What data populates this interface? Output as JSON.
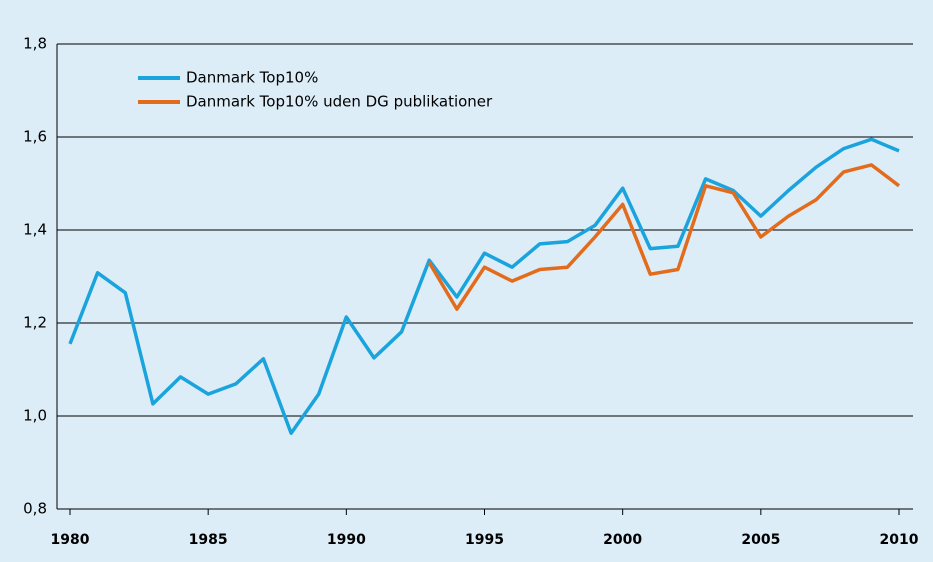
{
  "chart_data": {
    "type": "line",
    "x": [
      1980,
      1981,
      1982,
      1983,
      1984,
      1985,
      1986,
      1987,
      1988,
      1989,
      1990,
      1991,
      1992,
      1993,
      1994,
      1995,
      1996,
      1997,
      1998,
      1999,
      2000,
      2001,
      2002,
      2003,
      2004,
      2005,
      2006,
      2007,
      2008,
      2009,
      2010
    ],
    "series": [
      {
        "name": "Danmark Top10%",
        "color": "#1aa3dc",
        "values": [
          1.155,
          1.308,
          1.265,
          1.026,
          1.084,
          1.047,
          1.069,
          1.123,
          0.963,
          1.047,
          1.213,
          1.125,
          1.181,
          1.335,
          1.256,
          1.35,
          1.32,
          1.37,
          1.375,
          1.41,
          1.49,
          1.36,
          1.365,
          1.51,
          1.485,
          1.43,
          1.485,
          1.535,
          1.575,
          1.595,
          1.57
        ]
      },
      {
        "name": "Danmark Top10% uden DG publikationer",
        "color": "#e36c1c",
        "values": [
          null,
          null,
          null,
          null,
          null,
          null,
          null,
          null,
          null,
          null,
          null,
          null,
          null,
          1.33,
          1.23,
          1.32,
          1.29,
          1.315,
          1.32,
          1.385,
          1.455,
          1.305,
          1.315,
          1.495,
          1.48,
          1.385,
          1.43,
          1.465,
          1.525,
          1.54,
          1.495
        ]
      }
    ],
    "xlim": [
      1980,
      2010
    ],
    "xticks": [
      1980,
      1985,
      1990,
      1995,
      2000,
      2005,
      2010
    ],
    "ylim": [
      0.8,
      1.8
    ],
    "yticks": [
      {
        "value": 0.8,
        "label": "0,8"
      },
      {
        "value": 1.0,
        "label": "1,0"
      },
      {
        "value": 1.2,
        "label": "1,2"
      },
      {
        "value": 1.4,
        "label": "1,4"
      },
      {
        "value": 1.6,
        "label": "1,6"
      },
      {
        "value": 1.8,
        "label": "1,8"
      }
    ],
    "grid": true,
    "legend": "top-left"
  }
}
